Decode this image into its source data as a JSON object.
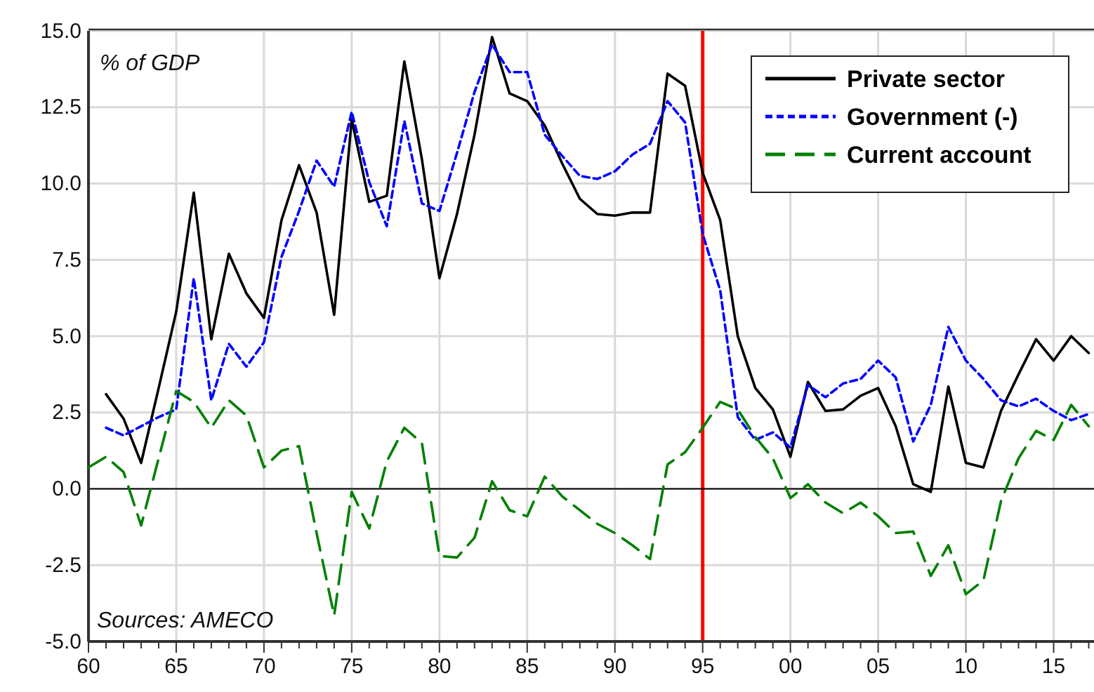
{
  "chart_data": {
    "type": "line",
    "x": [
      1960,
      1961,
      1962,
      1963,
      1964,
      1965,
      1966,
      1967,
      1968,
      1969,
      1970,
      1971,
      1972,
      1973,
      1974,
      1975,
      1976,
      1977,
      1978,
      1979,
      1980,
      1981,
      1982,
      1983,
      1984,
      1985,
      1986,
      1987,
      1988,
      1989,
      1990,
      1991,
      1992,
      1993,
      1994,
      1995,
      1996,
      1997,
      1998,
      1999,
      2000,
      2001,
      2002,
      2003,
      2004,
      2005,
      2006,
      2007,
      2008,
      2009,
      2010,
      2011,
      2012,
      2013,
      2014,
      2015,
      2016,
      2017
    ],
    "series": [
      {
        "name": "Private sector",
        "color": "#000000",
        "line_style": "solid",
        "values": [
          null,
          3.1,
          2.3,
          0.85,
          3.3,
          5.8,
          9.7,
          4.9,
          7.7,
          6.4,
          5.6,
          8.8,
          10.6,
          9.05,
          5.7,
          12.1,
          9.4,
          9.6,
          14.0,
          10.8,
          6.9,
          9.0,
          11.6,
          14.8,
          12.95,
          12.7,
          11.9,
          10.65,
          9.5,
          9.0,
          8.95,
          9.05,
          9.05,
          13.6,
          13.2,
          10.35,
          8.8,
          5.0,
          3.3,
          2.6,
          1.05,
          3.5,
          2.55,
          2.6,
          3.05,
          3.3,
          2.05,
          0.15,
          -0.1,
          3.35,
          0.85,
          0.7,
          2.55,
          3.75,
          4.9,
          4.2,
          5.0,
          4.45
        ]
      },
      {
        "name": "Government (-)",
        "color": "#0000ff",
        "line_style": "dashed",
        "values": [
          null,
          2.0,
          1.75,
          2.05,
          2.35,
          2.6,
          6.9,
          2.9,
          4.75,
          4.0,
          4.8,
          7.6,
          9.1,
          10.75,
          9.9,
          12.35,
          10.05,
          8.6,
          12.05,
          9.35,
          9.1,
          11.0,
          13.0,
          14.55,
          13.65,
          13.65,
          11.6,
          10.9,
          10.25,
          10.15,
          10.4,
          10.95,
          11.3,
          12.7,
          12.0,
          8.35,
          6.5,
          2.35,
          1.6,
          1.85,
          1.35,
          3.4,
          3.0,
          3.45,
          3.6,
          4.2,
          3.65,
          1.55,
          2.75,
          5.3,
          4.2,
          3.6,
          2.9,
          2.7,
          2.95,
          2.55,
          2.25,
          2.45
        ]
      },
      {
        "name": "Current account",
        "color": "#008000",
        "line_style": "dashed",
        "values": [
          0.7,
          1.05,
          0.55,
          -1.2,
          1.0,
          3.2,
          2.85,
          2.0,
          2.9,
          2.4,
          0.7,
          1.25,
          1.4,
          -1.45,
          -4.15,
          -0.1,
          -1.3,
          0.9,
          2.0,
          1.5,
          -2.2,
          -2.25,
          -1.6,
          0.25,
          -0.7,
          -0.9,
          0.4,
          -0.25,
          -0.7,
          -1.15,
          -1.45,
          -1.85,
          -2.3,
          0.8,
          1.2,
          2.0,
          2.85,
          2.6,
          1.7,
          1.0,
          -0.3,
          0.15,
          -0.45,
          -0.8,
          -0.45,
          -0.9,
          -1.45,
          -1.4,
          -2.85,
          -1.85,
          -3.45,
          -3.0,
          -0.4,
          1.0,
          1.9,
          1.6,
          2.75,
          2.05
        ]
      }
    ],
    "xlim": [
      1960,
      2017.3
    ],
    "xticks": [
      {
        "value": 1960,
        "label": "60"
      },
      {
        "value": 1961,
        "label": null
      },
      {
        "value": 1962,
        "label": null
      },
      {
        "value": 1963,
        "label": null
      },
      {
        "value": 1964,
        "label": null
      },
      {
        "value": 1965,
        "label": "65"
      },
      {
        "value": 1966,
        "label": null
      },
      {
        "value": 1967,
        "label": null
      },
      {
        "value": 1968,
        "label": null
      },
      {
        "value": 1969,
        "label": null
      },
      {
        "value": 1970,
        "label": "70"
      },
      {
        "value": 1971,
        "label": null
      },
      {
        "value": 1972,
        "label": null
      },
      {
        "value": 1973,
        "label": null
      },
      {
        "value": 1974,
        "label": null
      },
      {
        "value": 1975,
        "label": "75"
      },
      {
        "value": 1976,
        "label": null
      },
      {
        "value": 1977,
        "label": null
      },
      {
        "value": 1978,
        "label": null
      },
      {
        "value": 1979,
        "label": null
      },
      {
        "value": 1980,
        "label": "80"
      },
      {
        "value": 1981,
        "label": null
      },
      {
        "value": 1982,
        "label": null
      },
      {
        "value": 1983,
        "label": null
      },
      {
        "value": 1984,
        "label": null
      },
      {
        "value": 1985,
        "label": "85"
      },
      {
        "value": 1986,
        "label": null
      },
      {
        "value": 1987,
        "label": null
      },
      {
        "value": 1988,
        "label": null
      },
      {
        "value": 1989,
        "label": null
      },
      {
        "value": 1990,
        "label": "90"
      },
      {
        "value": 1991,
        "label": null
      },
      {
        "value": 1992,
        "label": null
      },
      {
        "value": 1993,
        "label": null
      },
      {
        "value": 1994,
        "label": null
      },
      {
        "value": 1995,
        "label": "95"
      },
      {
        "value": 1996,
        "label": null
      },
      {
        "value": 1997,
        "label": null
      },
      {
        "value": 1998,
        "label": null
      },
      {
        "value": 1999,
        "label": null
      },
      {
        "value": 2000,
        "label": "00"
      },
      {
        "value": 2001,
        "label": null
      },
      {
        "value": 2002,
        "label": null
      },
      {
        "value": 2003,
        "label": null
      },
      {
        "value": 2004,
        "label": null
      },
      {
        "value": 2005,
        "label": "05"
      },
      {
        "value": 2006,
        "label": null
      },
      {
        "value": 2007,
        "label": null
      },
      {
        "value": 2008,
        "label": null
      },
      {
        "value": 2009,
        "label": null
      },
      {
        "value": 2010,
        "label": "10"
      },
      {
        "value": 2011,
        "label": null
      },
      {
        "value": 2012,
        "label": null
      },
      {
        "value": 2013,
        "label": null
      },
      {
        "value": 2014,
        "label": null
      },
      {
        "value": 2015,
        "label": "15"
      },
      {
        "value": 2016,
        "label": null
      },
      {
        "value": 2017,
        "label": null
      }
    ],
    "ylim": [
      -5,
      15
    ],
    "yticks": [
      {
        "value": -5,
        "label": "-5.0"
      },
      {
        "value": -2.5,
        "label": "-2.5"
      },
      {
        "value": 0,
        "label": "0.0"
      },
      {
        "value": 2.5,
        "label": "2.5"
      },
      {
        "value": 5,
        "label": "5.0"
      },
      {
        "value": 7.5,
        "label": "7.5"
      },
      {
        "value": 10,
        "label": "10.0"
      },
      {
        "value": 12.5,
        "label": "12.5"
      },
      {
        "value": 15,
        "label": "15.0"
      }
    ],
    "grid": true,
    "legend": "top right",
    "ref_lines": [
      {
        "axis": "x",
        "value": 1995,
        "color": "#ff0000"
      },
      {
        "axis": "y",
        "value": 0,
        "color": "#000000"
      }
    ],
    "annotations": [
      "% of GDP",
      "Sources: AMECO"
    ]
  }
}
